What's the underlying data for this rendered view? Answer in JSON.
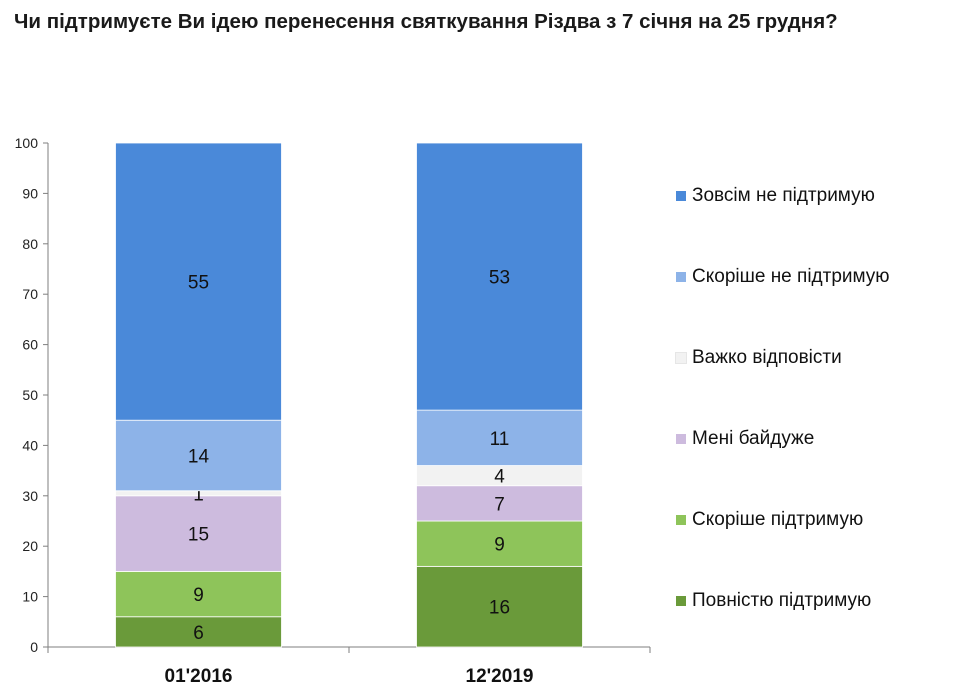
{
  "title": "Чи підтримуєте Ви ідею перенесення святкування Різдва з 7 січня на 25 грудня?",
  "chart_data": {
    "type": "bar",
    "stacked": true,
    "categories": [
      "01'2016",
      "12'2019"
    ],
    "ylim": [
      0,
      100
    ],
    "yticks": [
      0,
      10,
      20,
      30,
      40,
      50,
      60,
      70,
      80,
      90,
      100
    ],
    "grid": false,
    "legend_position": "right",
    "series": [
      {
        "name": "Повністю підтримую",
        "values": [
          6,
          16
        ],
        "color": "#6a9a3a"
      },
      {
        "name": "Скоріше  підтримую",
        "values": [
          9,
          9
        ],
        "color": "#8ec45a"
      },
      {
        "name": "Мені байдуже",
        "values": [
          15,
          7
        ],
        "color": "#cdbbde"
      },
      {
        "name": "Важко відповісти",
        "values": [
          1,
          4
        ],
        "color": "#f2f2f2"
      },
      {
        "name": "Скоріше  не підтримую",
        "values": [
          14,
          11
        ],
        "color": "#8db3e8"
      },
      {
        "name": "Зовсім не підтримую",
        "values": [
          55,
          53
        ],
        "color": "#4a89d9"
      }
    ]
  }
}
